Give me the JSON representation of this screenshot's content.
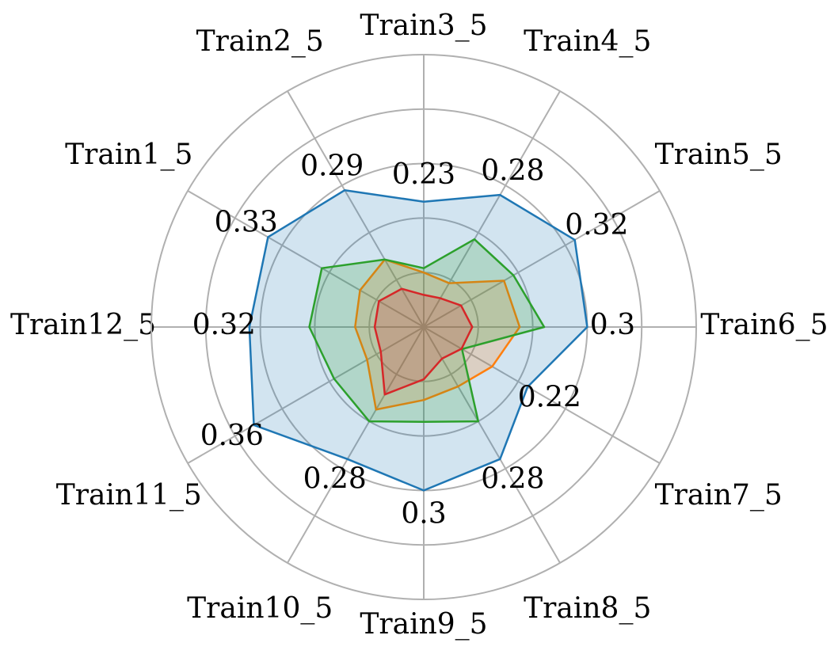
{
  "chart_data": {
    "type": "radar",
    "categories": [
      "Train1_5",
      "Train2_5",
      "Train3_5",
      "Train4_5",
      "Train5_5",
      "Train6_5",
      "Train7_5",
      "Train8_5",
      "Train9_5",
      "Train10_5",
      "Train11_5",
      "Train12_5"
    ],
    "ylim": [
      0,
      0.5
    ],
    "yticks": [
      0.1,
      0.2,
      0.3,
      0.4
    ],
    "grid": true,
    "series": [
      {
        "color": "#1f77b4",
        "values": [
          0.33,
          0.29,
          0.23,
          0.28,
          0.32,
          0.3,
          0.22,
          0.28,
          0.3,
          0.28,
          0.36,
          0.32
        ],
        "data_labels": true
      },
      {
        "color": "#ff7f0e",
        "values": [
          0.135,
          0.143,
          0.1,
          0.093,
          0.17,
          0.176,
          0.145,
          0.126,
          0.134,
          0.175,
          0.12,
          0.126
        ]
      },
      {
        "color": "#2ca02c",
        "values": [
          0.216,
          0.143,
          0.108,
          0.186,
          0.19,
          0.221,
          0.081,
          0.2,
          0.174,
          0.2,
          0.19,
          0.21
        ]
      },
      {
        "color": "#d62728",
        "values": [
          0.095,
          0.081,
          0.059,
          0.061,
          0.079,
          0.089,
          0.08,
          0.067,
          0.096,
          0.143,
          0.091,
          0.09
        ]
      }
    ]
  }
}
